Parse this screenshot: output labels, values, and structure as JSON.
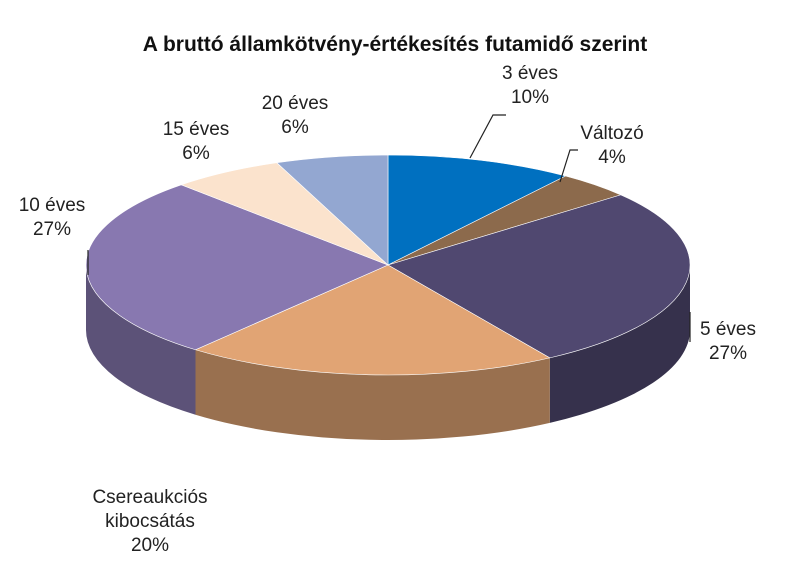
{
  "chart_data": {
    "type": "pie",
    "title": "A bruttó államkötvény-értékesítés futamidő szerint",
    "categories": [
      "3 éves",
      "Változó",
      "5 éves",
      "Csereaukciós kibocsátás",
      "10 éves",
      "15 éves",
      "20 éves"
    ],
    "values": [
      10,
      4,
      27,
      20,
      27,
      6,
      6
    ],
    "value_labels": [
      "10%",
      "4%",
      "27%",
      "20%",
      "27%",
      "6%",
      "6%"
    ],
    "colors": [
      "#0070c0",
      "#8c6a4c",
      "#504870",
      "#e1a474",
      "#8878b0",
      "#fbe3cd",
      "#93a7d1"
    ]
  }
}
